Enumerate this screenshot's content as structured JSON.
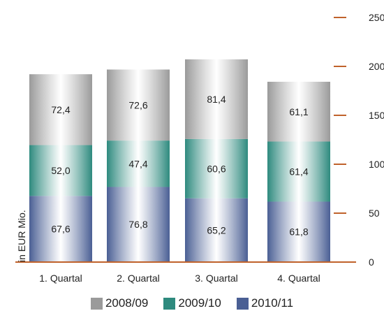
{
  "chart_data": {
    "type": "bar",
    "stacked": true,
    "categories": [
      "1. Quartal",
      "2. Quartal",
      "3. Quartal",
      "4. Quartal"
    ],
    "series": [
      {
        "name": "2010/11",
        "values": [
          67.6,
          76.8,
          65.2,
          61.8
        ],
        "labels": [
          "67,6",
          "76,8",
          "65,2",
          "61,8"
        ],
        "color": "#4a5f94"
      },
      {
        "name": "2009/10",
        "values": [
          52.0,
          47.4,
          60.6,
          61.4
        ],
        "labels": [
          "52,0",
          "47,4",
          "60,6",
          "61,4"
        ],
        "color": "#2e8a7e"
      },
      {
        "name": "2008/09",
        "values": [
          72.4,
          72.6,
          81.4,
          61.1
        ],
        "labels": [
          "72,4",
          "72,6",
          "81,4",
          "61,1"
        ],
        "color": "#9a9a9a"
      }
    ],
    "legend_order": [
      "2008/09",
      "2009/10",
      "2010/11"
    ],
    "ylabel": "in EUR Mio.",
    "ylim": [
      0,
      250
    ],
    "yticks": [
      0,
      50,
      100,
      150,
      200,
      250
    ],
    "axis_color": "#c0622b",
    "grid": false,
    "legend_position": "bottom"
  }
}
